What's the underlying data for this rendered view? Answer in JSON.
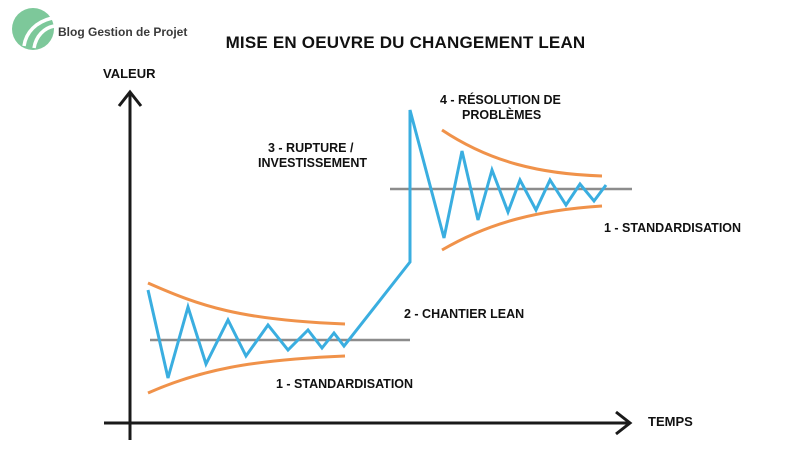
{
  "brand": {
    "name": "Blog Gestion de Projet",
    "color": "#7dc89a"
  },
  "title": "MISE EN OEUVRE DU CHANGEMENT LEAN",
  "axes": {
    "y_label": "VALEUR",
    "x_label": "TEMPS"
  },
  "phases": {
    "standardisation_1": "1 - STANDARDISATION",
    "chantier": "2 - CHANTIER LEAN",
    "rupture_line1": "3 - RUPTURE /",
    "rupture_line2": "INVESTISSEMENT",
    "resolution_line1": "4 - RÉSOLUTION DE",
    "resolution_line2": "PROBLÈMES",
    "standardisation_2": "1 - STANDARDISATION"
  },
  "colors": {
    "signal": "#3aaee0",
    "envelope": "#f0924a",
    "baseline": "#8c8c8c",
    "axis": "#1a1a1a"
  }
}
